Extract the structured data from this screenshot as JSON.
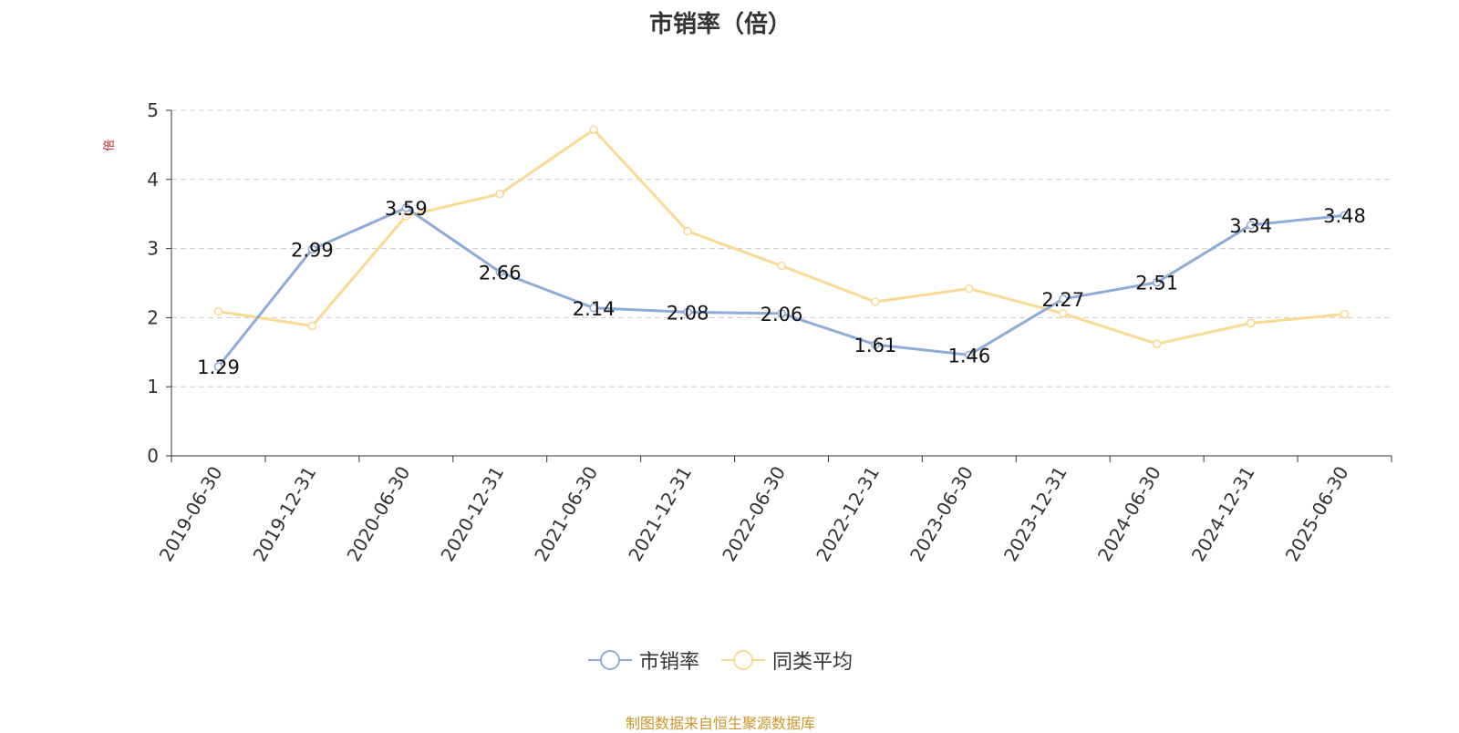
{
  "title": "市销率（倍）",
  "unit_label": "倍",
  "source_note": "制图数据来自恒生聚源数据库",
  "colors": {
    "series_1": "#8eacd8",
    "series_2": "#fbd993",
    "grid": "#cccccc",
    "axis": "#333333",
    "unit": "#e02020"
  },
  "chart_data": {
    "type": "line",
    "x": [
      "2019-06-30",
      "2019-12-31",
      "2020-06-30",
      "2020-12-31",
      "2021-06-30",
      "2021-12-31",
      "2022-06-30",
      "2022-12-31",
      "2023-06-30",
      "2023-12-31",
      "2024-06-30",
      "2024-12-31",
      "2025-06-30"
    ],
    "ylim": [
      0,
      5
    ],
    "yticks": [
      0,
      1,
      2,
      3,
      4,
      5
    ],
    "grid": true,
    "legend_position": "bottom",
    "series": [
      {
        "name": "市销率",
        "values": [
          1.29,
          2.99,
          3.59,
          2.66,
          2.14,
          2.08,
          2.06,
          1.61,
          1.46,
          2.27,
          2.51,
          3.34,
          3.48
        ],
        "labels": true
      },
      {
        "name": "同类平均",
        "values": [
          2.09,
          1.88,
          3.47,
          3.79,
          4.72,
          3.25,
          2.75,
          2.23,
          2.42,
          2.06,
          1.62,
          1.92,
          2.05
        ],
        "labels": false
      }
    ]
  }
}
